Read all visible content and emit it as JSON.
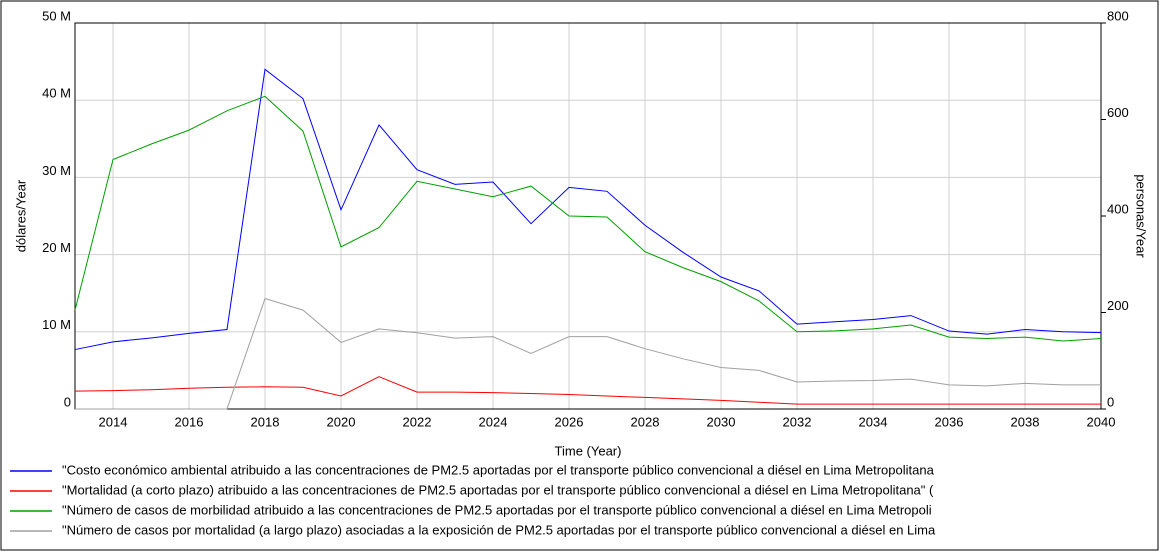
{
  "chart_data": {
    "type": "line",
    "x_label": "Time (Year)",
    "y_label": "dólares/Year",
    "y2_label": "personas/Year",
    "x": [
      2013,
      2014,
      2015,
      2016,
      2017,
      2018,
      2019,
      2020,
      2021,
      2022,
      2023,
      2024,
      2025,
      2026,
      2027,
      2028,
      2029,
      2030,
      2031,
      2032,
      2033,
      2034,
      2035,
      2036,
      2037,
      2038,
      2039,
      2040
    ],
    "xlim": [
      2013,
      2040
    ],
    "xticks": [
      2014,
      2016,
      2018,
      2020,
      2022,
      2024,
      2026,
      2028,
      2030,
      2032,
      2034,
      2036,
      2038,
      2040
    ],
    "ylim": [
      0,
      50000000
    ],
    "yticks": [
      {
        "value": 0,
        "label": "0"
      },
      {
        "value": 10000000,
        "label": "10 M"
      },
      {
        "value": 20000000,
        "label": "20 M"
      },
      {
        "value": 30000000,
        "label": "30 M"
      },
      {
        "value": 40000000,
        "label": "40 M"
      },
      {
        "value": 50000000,
        "label": "50 M"
      }
    ],
    "y2lim": [
      0,
      800
    ],
    "y2ticks": [
      0,
      200,
      400,
      600,
      800
    ],
    "grid": true,
    "series": [
      {
        "name": "\"Costo económico ambiental atribuido a las concentraciones de PM2.5 aportadas por el transporte público convencional a diésel en Lima Metropolitana",
        "color": "#0000ff",
        "values": [
          7700000,
          8700000,
          9200000,
          9800000,
          10300000,
          44000000,
          40200000,
          25800000,
          36800000,
          31000000,
          29100000,
          29400000,
          24000000,
          28700000,
          28200000,
          23800000,
          20300000,
          17100000,
          15300000,
          11000000,
          11300000,
          11600000,
          12100000,
          10100000,
          9700000,
          10300000,
          10000000,
          9900000
        ]
      },
      {
        "name": "\"Mortalidad (a corto plazo) atribuido a las concentraciones de PM2.5 aportadas por el transporte público convencional a diésel en Lima Metropolitana\" (",
        "color": "#ff0000",
        "axis": "y2",
        "values": [
          37,
          38,
          40,
          43,
          45,
          46,
          45,
          27,
          67,
          35,
          35,
          34,
          32,
          30,
          27,
          24,
          21,
          18,
          14,
          10,
          10,
          10,
          10,
          10,
          10,
          10,
          10,
          10
        ]
      },
      {
        "name": "\"Número de casos de morbilidad atribuido a las concentraciones de PM2.5 aportadas por el transporte público convencional a diésel en Lima Metropoli",
        "color": "#00a000",
        "axis": "y2",
        "values": [
          205,
          517,
          549,
          578,
          618,
          648,
          576,
          336,
          376,
          472,
          456,
          440,
          462,
          400,
          398,
          326,
          293,
          264,
          224,
          160,
          162,
          166,
          174,
          149,
          146,
          149,
          141,
          146
        ]
      },
      {
        "name": "\"Número de casos por mortalidad (a largo plazo) asociadas a la exposición de PM2.5 aportadas por el transporte público convencional a diésel en Lima",
        "color": "#a0a0a0",
        "axis": "y2",
        "values": [
          0,
          0,
          0,
          0,
          0,
          229,
          205,
          138,
          166,
          158,
          147,
          150,
          115,
          150,
          150,
          125,
          104,
          86,
          80,
          56,
          58,
          59,
          62,
          50,
          48,
          53,
          50,
          50
        ]
      }
    ]
  }
}
